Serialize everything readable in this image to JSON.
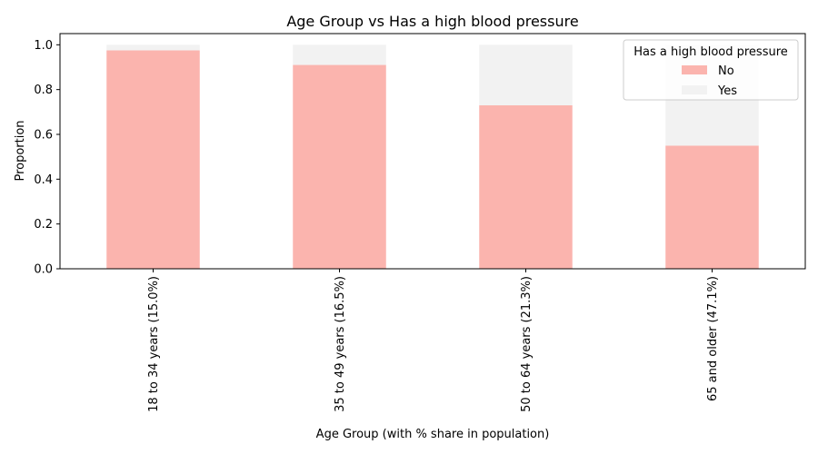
{
  "chart_data": {
    "type": "bar",
    "stacked": true,
    "title": "Age Group vs Has a high blood pressure",
    "xlabel": "Age Group (with % share in population)",
    "ylabel": "Proportion",
    "ylim": [
      0,
      1.05
    ],
    "yticks": [
      "0.0",
      "0.2",
      "0.4",
      "0.6",
      "0.8",
      "1.0"
    ],
    "categories": [
      "18 to 34 years (15.0%)",
      "35 to 49 years (16.5%)",
      "50 to 64 years (21.3%)",
      "65 and older (47.1%)"
    ],
    "series": [
      {
        "name": "No",
        "color": "#fbb4ae",
        "values": [
          0.975,
          0.91,
          0.73,
          0.55
        ]
      },
      {
        "name": "Yes",
        "color": "#f2f2f2",
        "values": [
          0.025,
          0.09,
          0.27,
          0.45
        ]
      }
    ],
    "legend": {
      "title": "Has a high blood pressure",
      "position": "top-right"
    },
    "grid": false
  }
}
